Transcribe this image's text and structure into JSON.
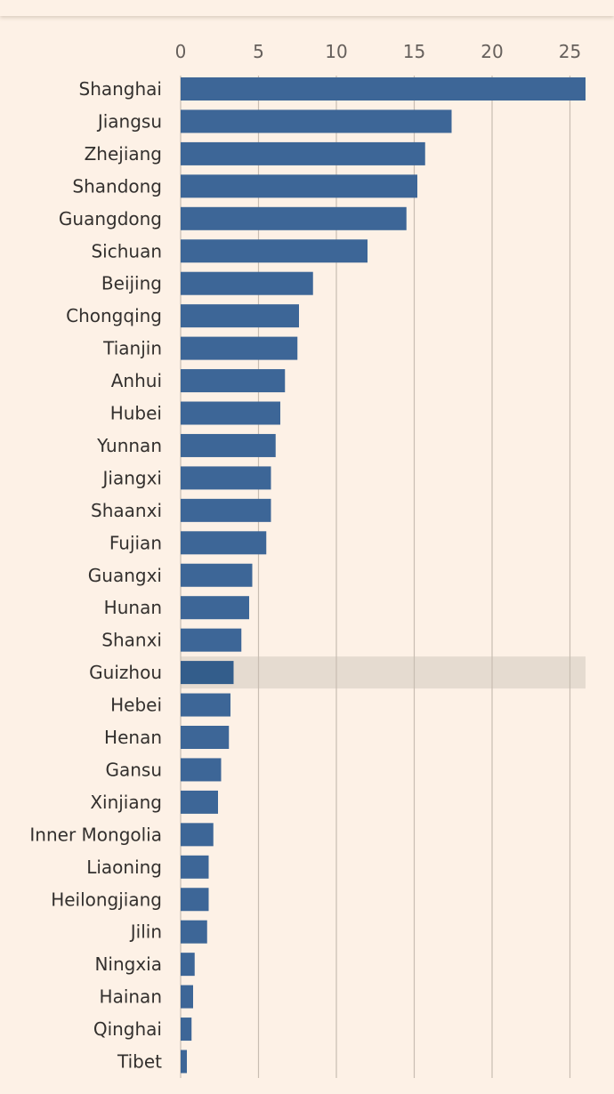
{
  "chart_data": {
    "type": "bar",
    "orientation": "horizontal",
    "title": "",
    "xlabel": "",
    "ylabel": "",
    "xlim": [
      0,
      26
    ],
    "x_ticks": [
      0,
      5,
      10,
      15,
      20,
      25
    ],
    "grid": true,
    "highlight": "Guizhou",
    "categories": [
      "Shanghai",
      "Jiangsu",
      "Zhejiang",
      "Shandong",
      "Guangdong",
      "Sichuan",
      "Beijing",
      "Chongqing",
      "Tianjin",
      "Anhui",
      "Hubei",
      "Yunnan",
      "Jiangxi",
      "Shaanxi",
      "Fujian",
      "Guangxi",
      "Hunan",
      "Shanxi",
      "Guizhou",
      "Hebei",
      "Henan",
      "Gansu",
      "Xinjiang",
      "Inner Mongolia",
      "Liaoning",
      "Heilongjiang",
      "Jilin",
      "Ningxia",
      "Hainan",
      "Qinghai",
      "Tibet"
    ],
    "values": [
      26.0,
      17.4,
      15.7,
      15.2,
      14.5,
      12.0,
      8.5,
      7.6,
      7.5,
      6.7,
      6.4,
      6.1,
      5.8,
      5.8,
      5.5,
      4.6,
      4.4,
      3.9,
      3.4,
      3.2,
      3.1,
      2.6,
      2.4,
      2.1,
      1.8,
      1.8,
      1.7,
      0.9,
      0.8,
      0.7,
      0.4
    ]
  },
  "colors": {
    "background": "#fdf1e6",
    "bar": "#3d6697",
    "bar_highlight": "#335d8b",
    "highlight_band": "#e5dbd0",
    "gridline": "#c8bdb2",
    "tick_text": "#66605c",
    "label_text": "#33302e"
  }
}
